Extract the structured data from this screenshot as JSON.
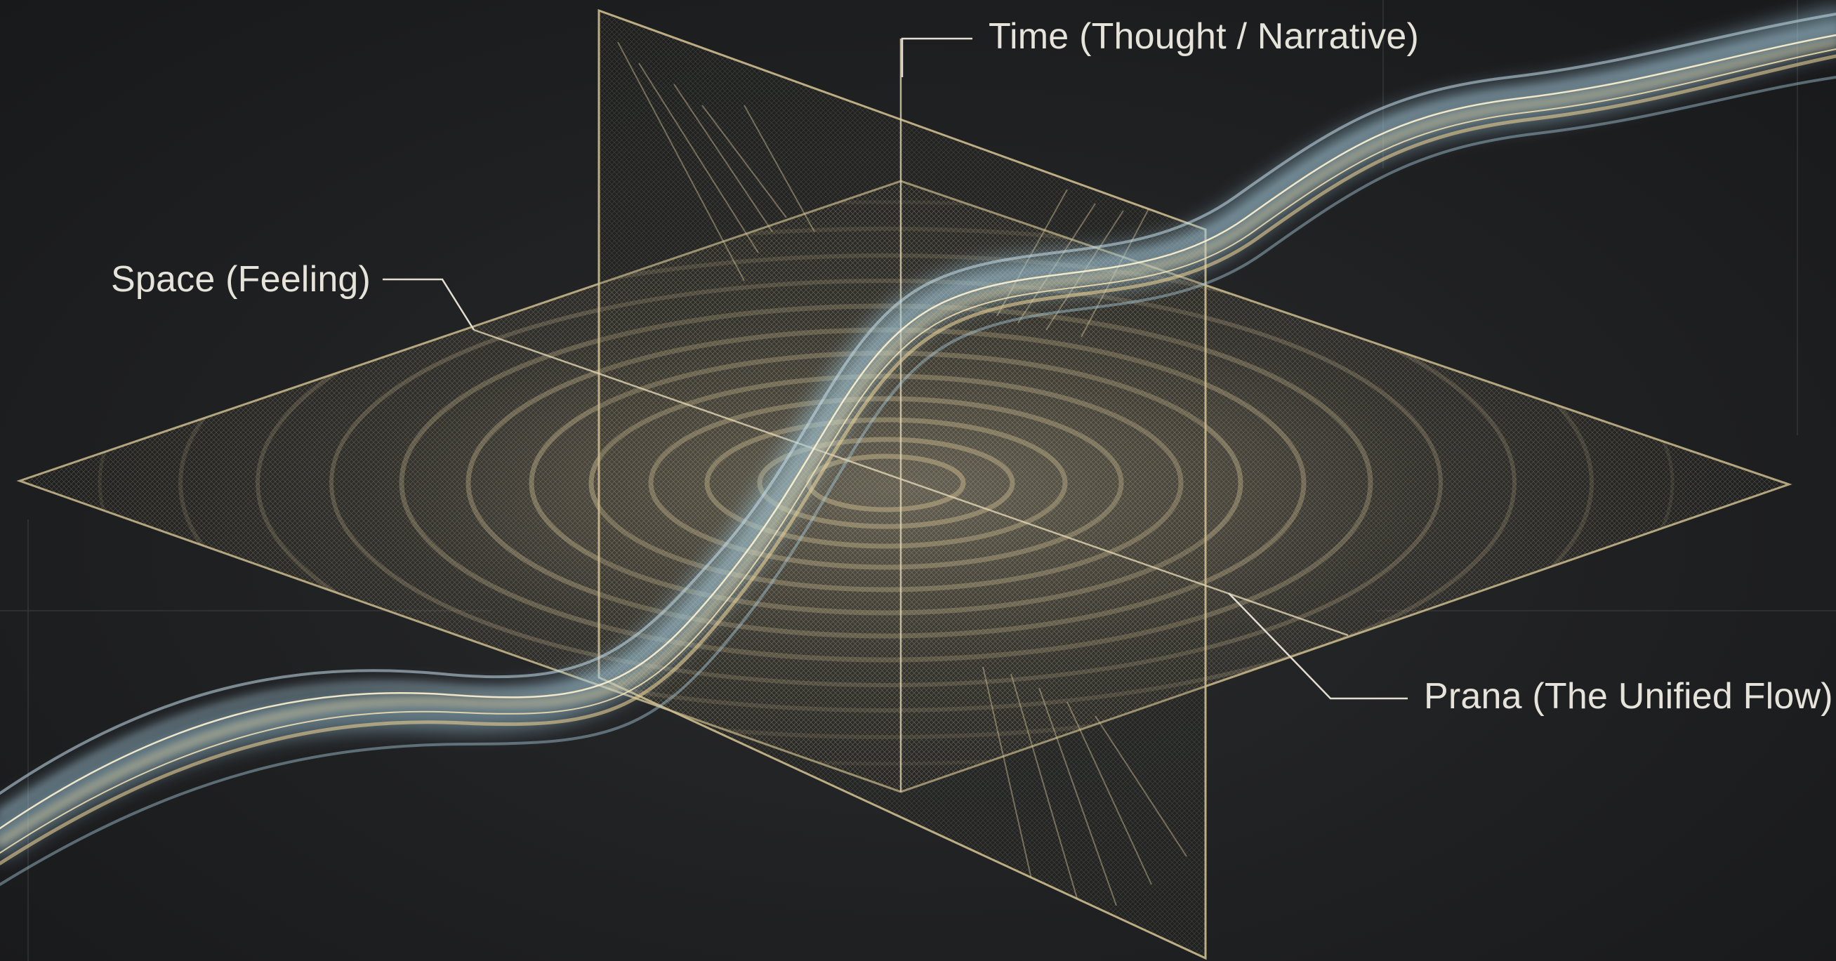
{
  "labels": {
    "time": "Time (Thought / Narrative)",
    "space": "Space (Feeling)",
    "prana": "Prana (The Unified Flow)"
  },
  "colors": {
    "background": "#1e1f21",
    "plane_line": "#c9b98a",
    "flow_gold": "#f1d9a0",
    "flow_blue": "#bcd8e6",
    "label_text": "#e6e3da"
  }
}
